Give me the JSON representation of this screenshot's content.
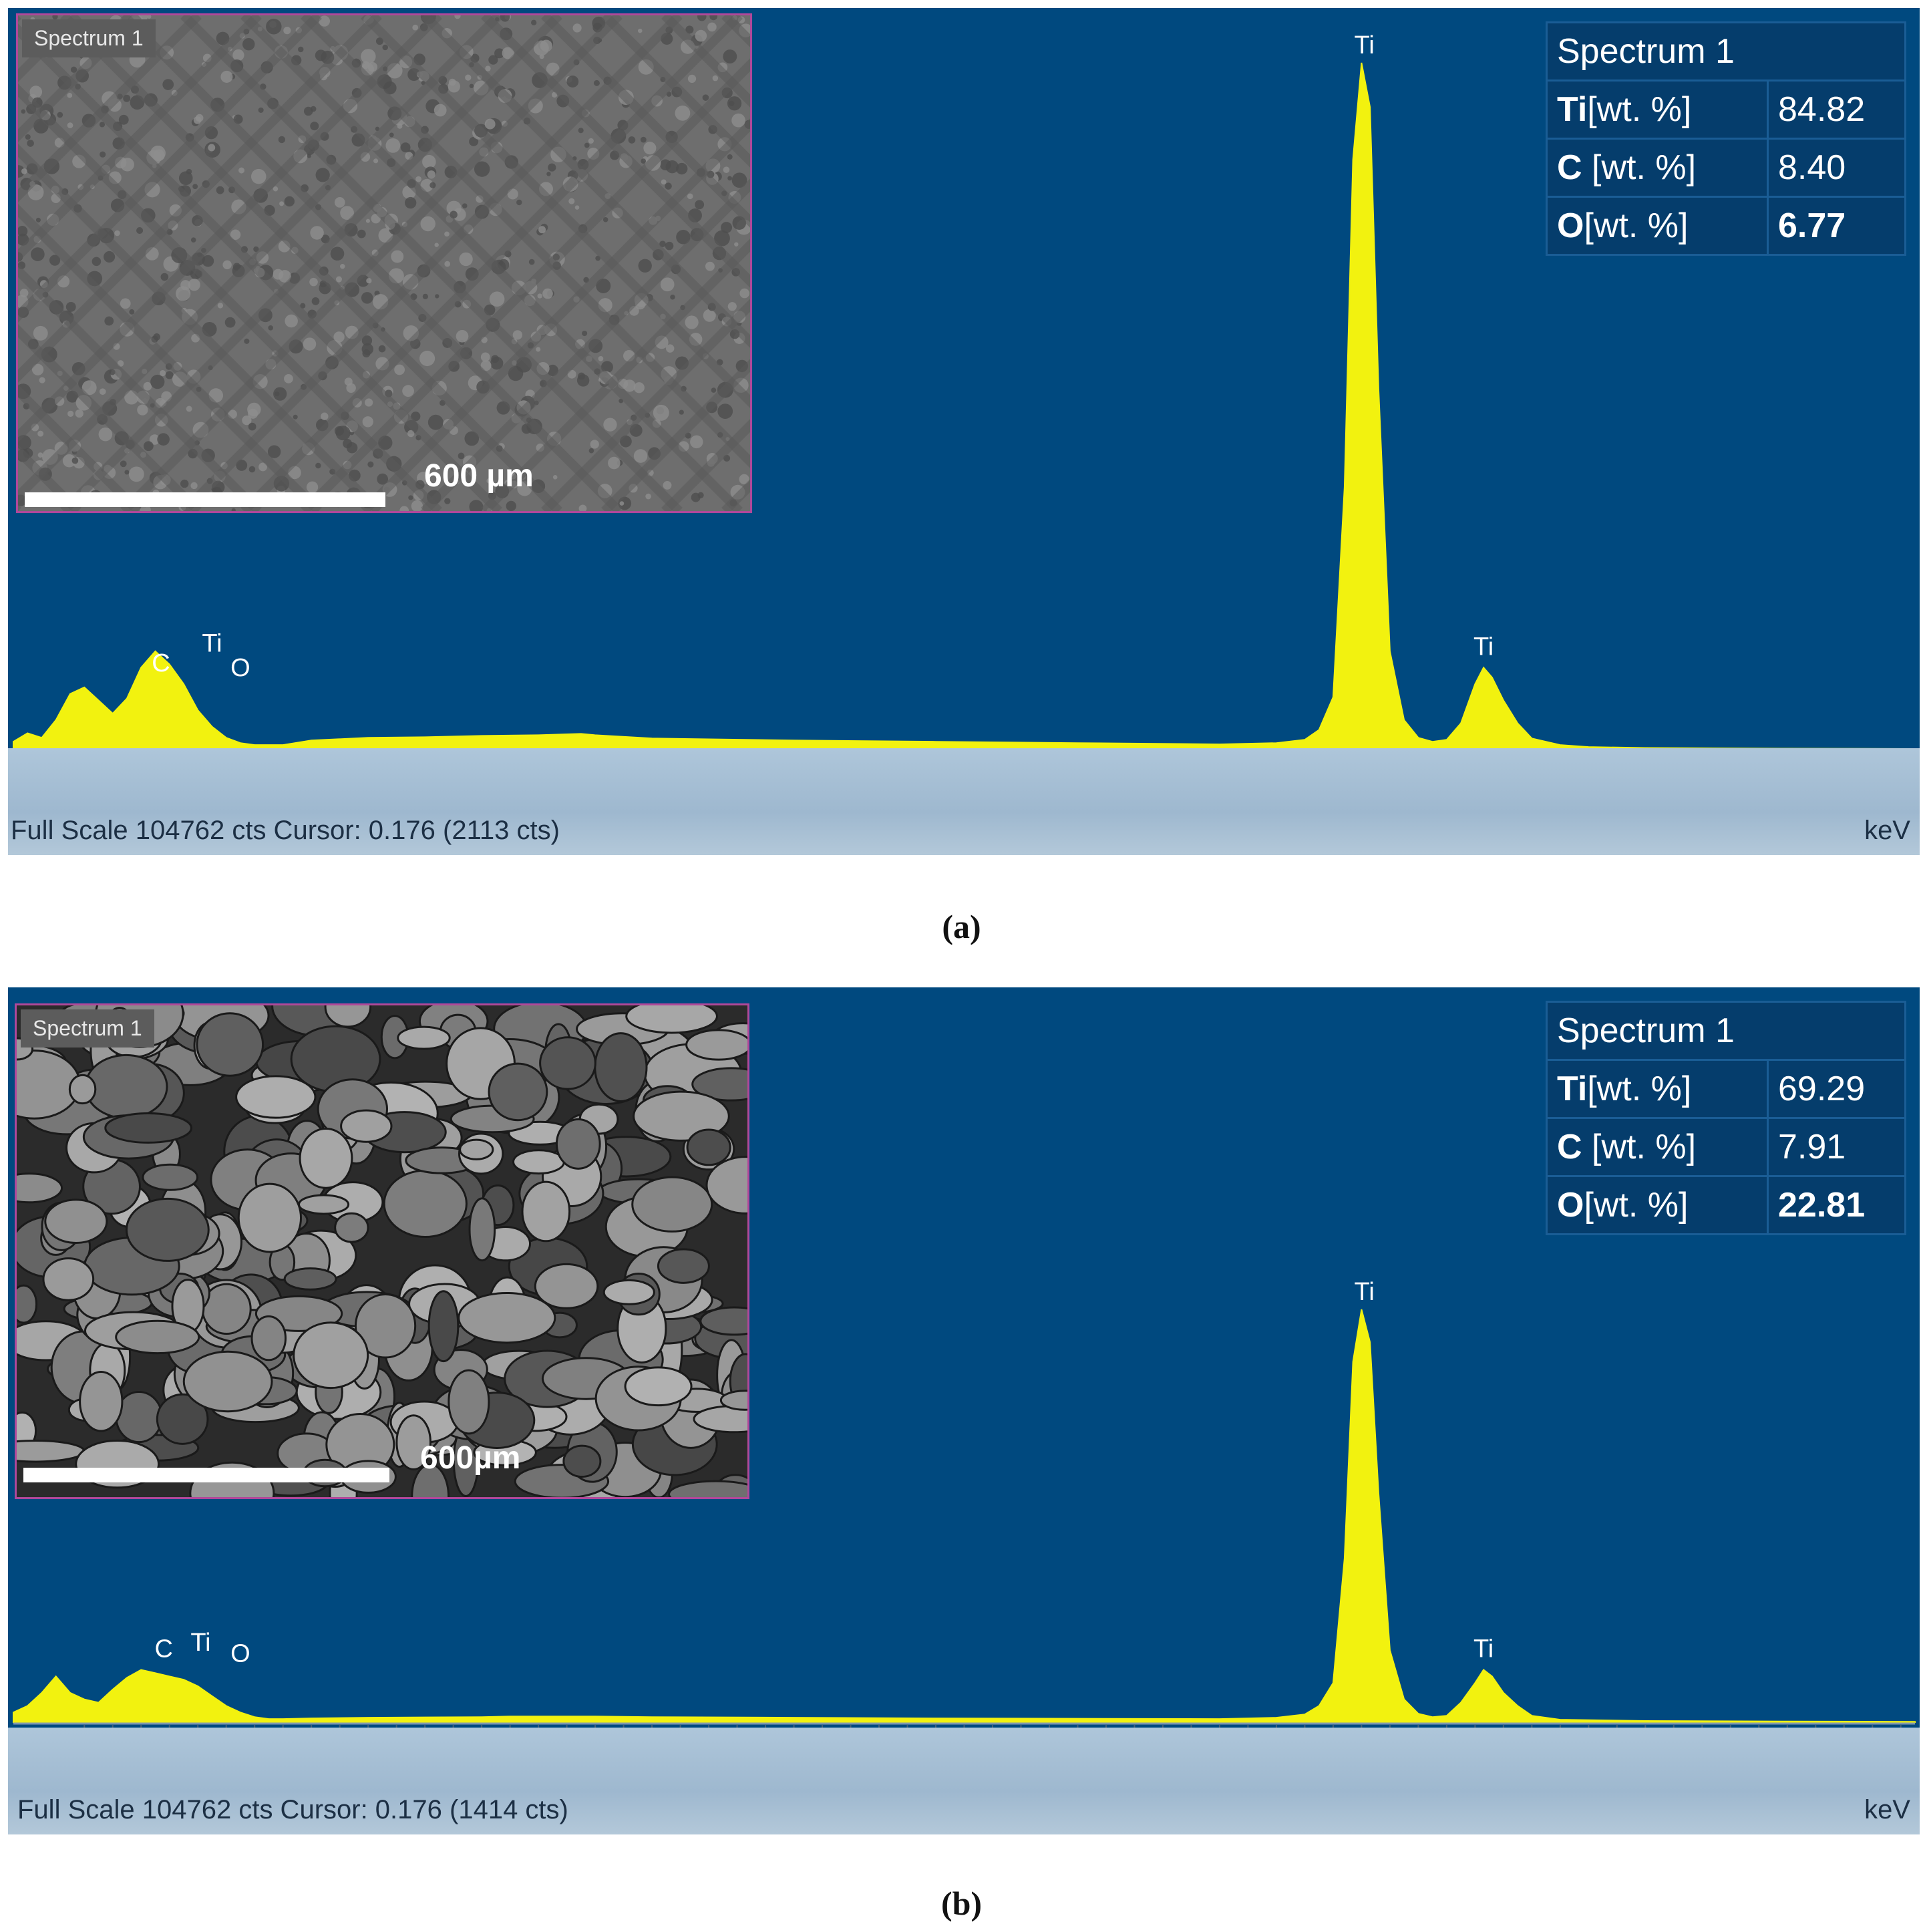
{
  "chart_data": [
    {
      "type": "area",
      "panel": "(a)",
      "xlabel": "keV",
      "xlim": [
        -0.25,
        6.45
      ],
      "x_ticks": [
        "0.5",
        "1",
        "1.5",
        "2",
        "2.5",
        "3",
        "3.5",
        "4",
        "4.5",
        "5",
        "5.5",
        "6"
      ],
      "x_tick_values": [
        0.5,
        1,
        1.5,
        2,
        2.5,
        3,
        3.5,
        4,
        4.5,
        5,
        5.5,
        6
      ],
      "footer_text": "Full Scale 104762 cts Cursor: 0.176  (2113 cts)",
      "inset_label": "Spectrum 1",
      "scale_label": "600 µm",
      "peak_labels": [
        {
          "text": "C",
          "x": 0.27,
          "y": 10500
        },
        {
          "text": "Ti",
          "x": 0.45,
          "y": 13500
        },
        {
          "text": "O",
          "x": 0.55,
          "y": 9800
        },
        {
          "text": "Ti",
          "x": 4.51,
          "y": 104762
        },
        {
          "text": "Ti",
          "x": 4.93,
          "y": 13000
        }
      ],
      "spectrum": {
        "x": [
          -0.25,
          -0.2,
          -0.15,
          -0.1,
          -0.05,
          0,
          0.05,
          0.1,
          0.15,
          0.2,
          0.25,
          0.3,
          0.35,
          0.4,
          0.45,
          0.5,
          0.55,
          0.6,
          0.7,
          0.8,
          1.0,
          1.2,
          1.4,
          1.6,
          1.75,
          1.8,
          2.0,
          2.5,
          3.0,
          3.5,
          4.0,
          4.2,
          4.3,
          4.35,
          4.4,
          4.44,
          4.47,
          4.5,
          4.53,
          4.56,
          4.6,
          4.65,
          4.7,
          4.75,
          4.8,
          4.85,
          4.9,
          4.93,
          4.96,
          5.0,
          5.05,
          5.1,
          5.2,
          5.3,
          5.5,
          6.0,
          6.45
        ],
        "y": [
          1200,
          2500,
          1800,
          4500,
          8500,
          9500,
          7500,
          5500,
          7800,
          12500,
          15000,
          13000,
          10000,
          6000,
          3500,
          1800,
          1000,
          700,
          700,
          1400,
          1800,
          1900,
          2100,
          2200,
          2400,
          2200,
          1700,
          1400,
          1200,
          1000,
          800,
          1000,
          1500,
          3000,
          8000,
          40000,
          90000,
          104762,
          98000,
          55000,
          15000,
          4500,
          1800,
          1200,
          1500,
          4000,
          10000,
          12500,
          11000,
          7500,
          4000,
          1700,
          700,
          400,
          250,
          150,
          100
        ]
      },
      "wt_table": {
        "title": "Spectrum 1",
        "rows": [
          {
            "element": "Ti",
            "unit": "[wt. %]",
            "value": "84.82"
          },
          {
            "element": "C",
            "unit": " [wt. %]",
            "value": "8.40"
          },
          {
            "element": "O",
            "unit": "[wt. %]",
            "value": "6.77"
          }
        ]
      }
    },
    {
      "type": "area",
      "panel": "(b)",
      "xlabel": "keV",
      "xlim": [
        -0.25,
        6.45
      ],
      "x_ticks": [
        "0.5",
        "1",
        "1.5",
        "2",
        "2.5",
        "3",
        "3.5",
        "4",
        "4.5",
        "5",
        "5.5",
        "6"
      ],
      "x_tick_values": [
        0.5,
        1,
        1.5,
        2,
        2.5,
        3,
        3.5,
        4,
        4.5,
        5,
        5.5,
        6
      ],
      "footer_text": "Full Scale 104762 cts Cursor: 0.176  (1414 cts)",
      "inset_label": "Spectrum 1",
      "scale_label": "600µm",
      "peak_labels": [
        {
          "text": "C",
          "x": 0.28,
          "y": 8500
        },
        {
          "text": "Ti",
          "x": 0.41,
          "y": 9500
        },
        {
          "text": "O",
          "x": 0.55,
          "y": 7800
        },
        {
          "text": "Ti",
          "x": 4.51,
          "y": 63000
        },
        {
          "text": "Ti",
          "x": 4.93,
          "y": 8500
        }
      ],
      "spectrum": {
        "x": [
          -0.25,
          -0.2,
          -0.15,
          -0.1,
          -0.05,
          0,
          0.05,
          0.1,
          0.15,
          0.2,
          0.25,
          0.3,
          0.35,
          0.4,
          0.45,
          0.5,
          0.55,
          0.6,
          0.65,
          0.7,
          0.8,
          1.0,
          1.4,
          1.5,
          1.8,
          2.0,
          2.5,
          3.0,
          3.5,
          4.0,
          4.2,
          4.3,
          4.35,
          4.4,
          4.44,
          4.47,
          4.5,
          4.53,
          4.56,
          4.6,
          4.65,
          4.7,
          4.75,
          4.8,
          4.85,
          4.9,
          4.93,
          4.96,
          5.0,
          5.05,
          5.1,
          5.2,
          5.5,
          6.0,
          6.45
        ],
        "y": [
          1500,
          2500,
          4500,
          7000,
          4500,
          3500,
          3000,
          5000,
          6800,
          8000,
          7500,
          7000,
          6500,
          5500,
          4000,
          2500,
          1500,
          800,
          500,
          500,
          600,
          700,
          800,
          900,
          900,
          800,
          700,
          600,
          550,
          500,
          700,
          1200,
          2500,
          6000,
          25000,
          55000,
          63000,
          58000,
          35000,
          11000,
          3500,
          1300,
          800,
          1000,
          3000,
          6000,
          8000,
          7000,
          4500,
          2500,
          1000,
          400,
          200,
          120,
          80
        ]
      },
      "wt_table": {
        "title": "Spectrum 1",
        "rows": [
          {
            "element": "Ti",
            "unit": "[wt. %]",
            "value": "69.29"
          },
          {
            "element": "C",
            "unit": " [wt. %]",
            "value": "7.91"
          },
          {
            "element": "O",
            "unit": "[wt. %]",
            "value": "22.81"
          }
        ]
      }
    }
  ],
  "captions": [
    "(a)",
    "(b)"
  ]
}
